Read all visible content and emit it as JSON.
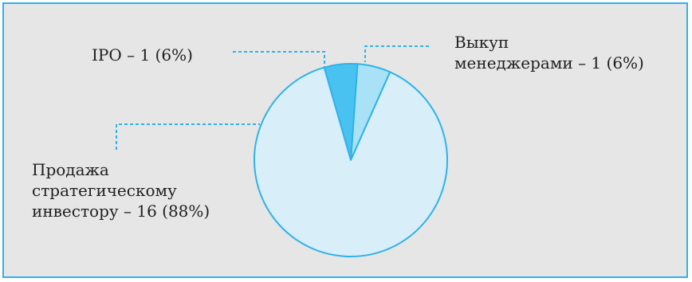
{
  "chart_data": {
    "type": "pie",
    "title": "",
    "unit": "%",
    "slices": [
      {
        "label": "Выкуп менеджерами",
        "count": 1,
        "percent": 6,
        "color": "#a9e1f7"
      },
      {
        "label": "IPO",
        "count": 1,
        "percent": 6,
        "color": "#49c2f1"
      },
      {
        "label": "Продажа стратегическому инвестору",
        "count": 16,
        "percent": 88,
        "color": "#d8eef9"
      }
    ],
    "legend": "none",
    "edge_color": "#2fb3e6"
  },
  "labels": {
    "ipo": "IPO – 1 (6%)",
    "buyout_line1": "Выкуп",
    "buyout_line2": "менеджерами – 1 (6%)",
    "sale_line1": "Продажа",
    "sale_line2": "стратегическому",
    "sale_line3": "инвестору – 16 (88%)"
  }
}
